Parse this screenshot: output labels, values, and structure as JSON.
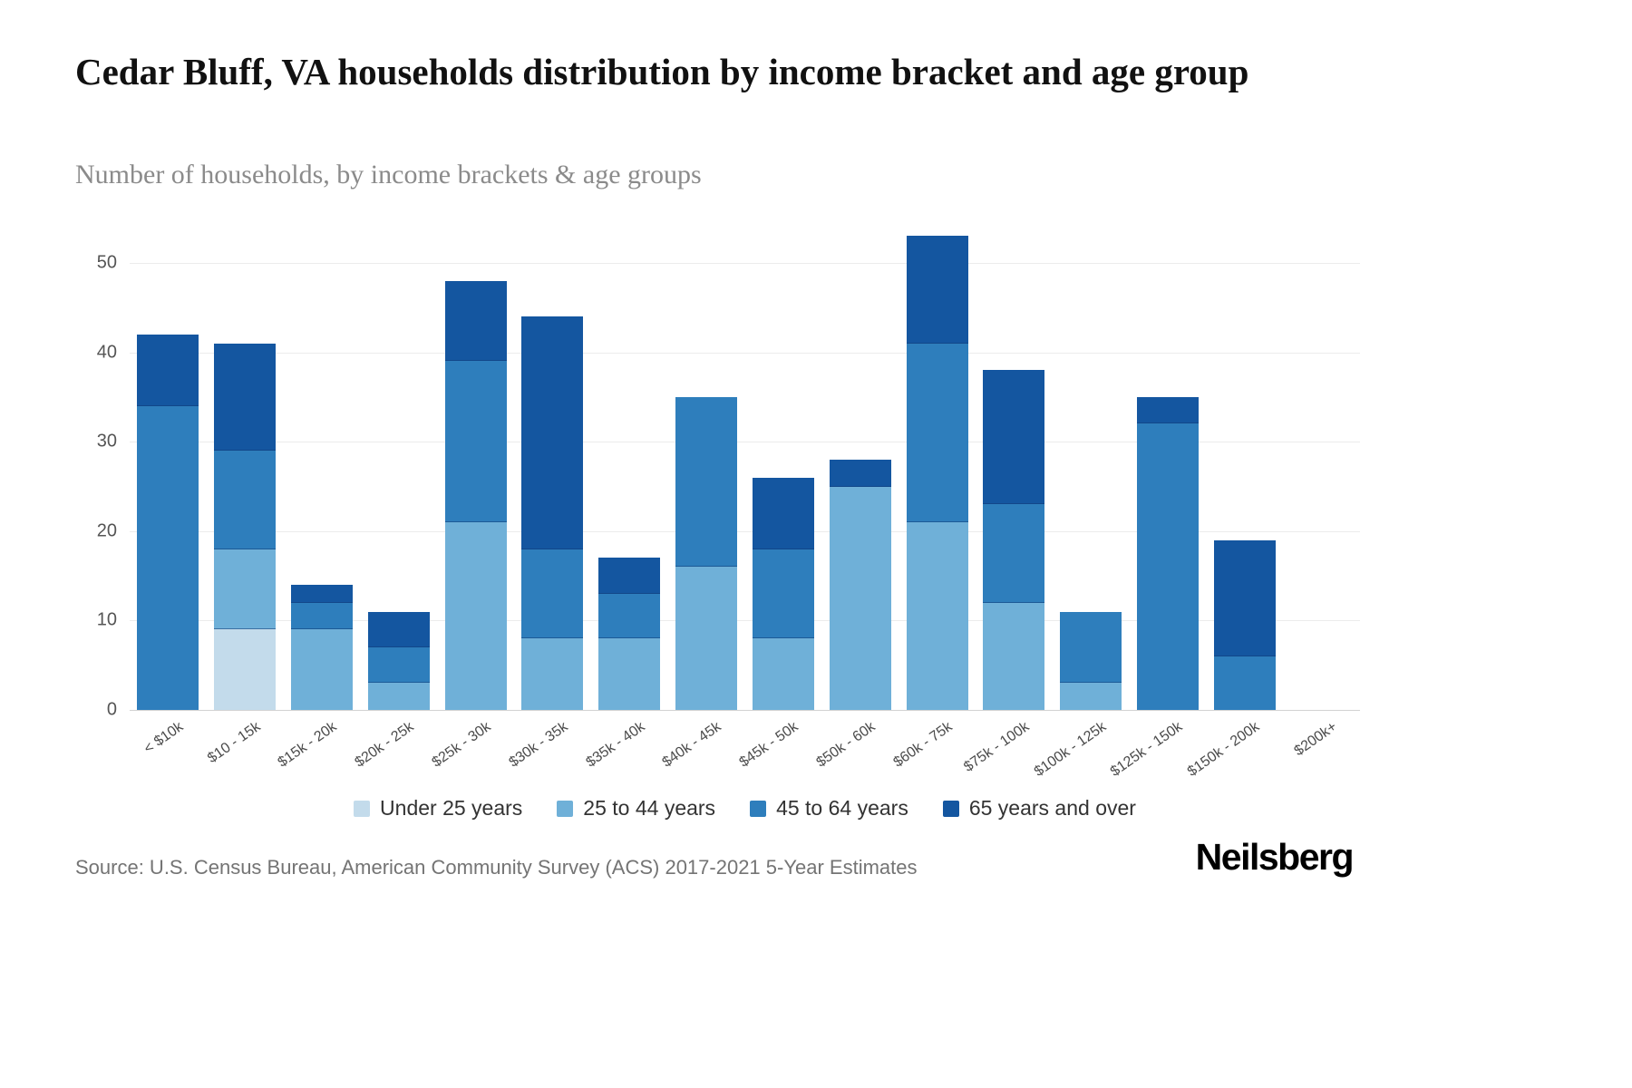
{
  "page": {
    "source": "Source: U.S. Census Bureau, American Community Survey (ACS) 2017-2021 5-Year Estimates",
    "brand": "Neilsberg"
  },
  "chart_data": {
    "type": "bar",
    "stacked": true,
    "title": "Cedar Bluff, VA households distribution by income bracket and age group",
    "subtitle": "Number of households, by income brackets & age groups",
    "xlabel": "",
    "ylabel": "",
    "ylim": [
      0,
      50
    ],
    "yticks": [
      0,
      10,
      20,
      30,
      40,
      50
    ],
    "grid": true,
    "legend_position": "bottom",
    "categories": [
      "< $10k",
      "$10 - 15k",
      "$15k - 20k",
      "$20k - 25k",
      "$25k - 30k",
      "$30k - 35k",
      "$35k - 40k",
      "$40k - 45k",
      "$45k - 50k",
      "$50k - 60k",
      "$60k - 75k",
      "$75k - 100k",
      "$100k - 125k",
      "$125k - 150k",
      "$150k - 200k",
      "$200k+"
    ],
    "series": [
      {
        "name": "Under 25 years",
        "color": "#c3dbeb",
        "values": [
          0,
          9,
          0,
          0,
          0,
          0,
          0,
          0,
          0,
          0,
          0,
          0,
          0,
          0,
          0,
          0
        ]
      },
      {
        "name": "25 to 44 years",
        "color": "#6fb0d8",
        "values": [
          0,
          9,
          9,
          3,
          21,
          8,
          8,
          16,
          8,
          25,
          21,
          12,
          3,
          0,
          0,
          0
        ]
      },
      {
        "name": "45 to 64 years",
        "color": "#2e7ebc",
        "values": [
          34,
          11,
          3,
          4,
          18,
          10,
          5,
          19,
          10,
          0,
          20,
          11,
          8,
          32,
          6,
          0
        ]
      },
      {
        "name": "65 years and over",
        "color": "#1456a0",
        "values": [
          8,
          12,
          2,
          4,
          9,
          26,
          4,
          0,
          8,
          3,
          12,
          15,
          0,
          3,
          13,
          0
        ]
      }
    ],
    "totals": [
      42,
      41,
      14,
      11,
      48,
      44,
      17,
      35,
      26,
      28,
      53,
      38,
      11,
      35,
      19,
      0
    ]
  }
}
